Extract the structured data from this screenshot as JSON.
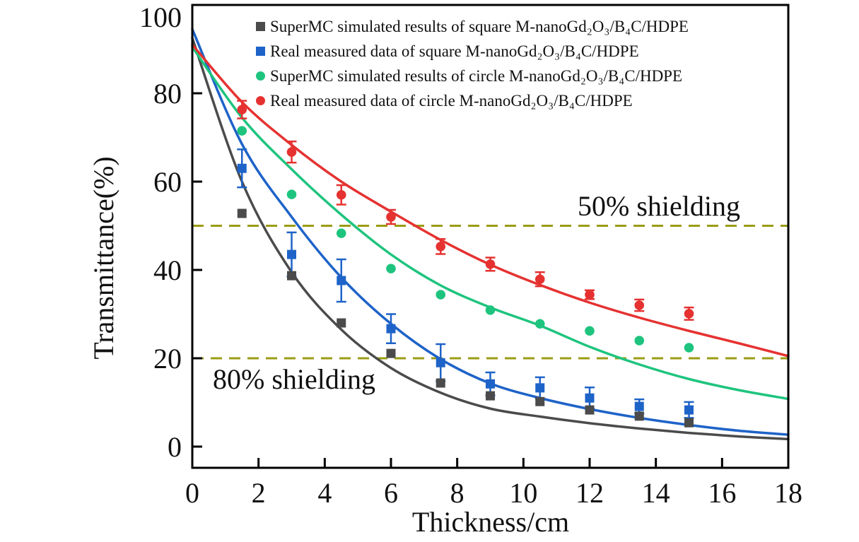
{
  "chart_data": {
    "type": "scatter",
    "title": "",
    "xlabel": "Thickness/cm",
    "ylabel": "Transmittance(%)",
    "xlim": [
      0,
      18
    ],
    "ylim": [
      -4.8,
      100
    ],
    "x_ticks": [
      0,
      2,
      4,
      6,
      8,
      10,
      12,
      14,
      16,
      18
    ],
    "y_ticks": [
      0,
      20,
      40,
      60,
      80,
      100
    ],
    "grid": false,
    "legend_position": "upper-left-inside",
    "x": [
      1.5,
      3,
      4.5,
      6,
      7.5,
      9,
      10.5,
      12,
      13.5,
      15
    ],
    "curve_x": [
      0,
      1.5,
      3,
      4.5,
      6,
      7.5,
      9,
      10.5,
      12,
      13.5,
      15,
      16.5,
      18
    ],
    "series": [
      {
        "name": "SuperMC simulated results of square M-nanoGd₂O₃/B₄C/HDPE",
        "marker": "square",
        "color": "#4b4b4b",
        "values": [
          52.8,
          38.7,
          28.0,
          21.1,
          14.4,
          11.5,
          10.2,
          8.3,
          6.9,
          5.4
        ],
        "errors": null,
        "curve_y": [
          92.5,
          60.0,
          39.5,
          26.5,
          17.8,
          12.2,
          8.6,
          6.8,
          5.3,
          4.1,
          3.1,
          2.3,
          1.7
        ]
      },
      {
        "name": "Real measured data of square M-nanoGd₂O₃/B₄C/HDPE",
        "marker": "square",
        "color": "#1e63c8",
        "values": [
          63.0,
          43.5,
          37.6,
          26.7,
          19.0,
          14.2,
          13.3,
          11.0,
          9.1,
          8.3
        ],
        "errors": [
          4.3,
          5.0,
          4.8,
          3.3,
          4.2,
          2.6,
          2.4,
          2.4,
          1.6,
          1.8
        ],
        "curve_y": [
          94.5,
          68.5,
          52.0,
          38.3,
          27.8,
          19.8,
          14.3,
          11.0,
          8.5,
          6.5,
          4.9,
          3.6,
          2.7
        ]
      },
      {
        "name": "SuperMC simulated results of circle M-nanoGd₂O₃/B₄C/HDPE",
        "marker": "circle",
        "color": "#1ec47e",
        "values": [
          71.5,
          57.1,
          48.3,
          40.3,
          34.4,
          30.9,
          27.8,
          26.2,
          24.0,
          22.4
        ],
        "errors": null,
        "curve_y": [
          90.5,
          74.5,
          62.8,
          52.5,
          43.5,
          36.5,
          31.5,
          27.4,
          22.6,
          18.6,
          15.3,
          12.8,
          10.8
        ]
      },
      {
        "name": "Real measured data of circle M-nanoGd₂O₃/B₄C/HDPE",
        "marker": "circle",
        "color": "#e53231",
        "values": [
          76.3,
          66.7,
          57.0,
          52.0,
          45.3,
          41.3,
          37.9,
          34.4,
          32.0,
          30.1
        ],
        "errors": [
          2.0,
          2.4,
          2.2,
          1.6,
          1.7,
          1.5,
          1.6,
          1.0,
          1.3,
          1.4
        ],
        "curve_y": [
          91.0,
          78.0,
          68.3,
          60.0,
          53.2,
          46.8,
          41.2,
          36.6,
          32.6,
          29.2,
          26.2,
          23.4,
          20.5
        ]
      }
    ],
    "reference_lines": [
      {
        "y": 50,
        "label": "50% shielding",
        "color": "#9c9c14",
        "style": "dashed"
      },
      {
        "y": 20,
        "label": "80% shielding",
        "color": "#9c9c14",
        "style": "dashed"
      }
    ]
  }
}
